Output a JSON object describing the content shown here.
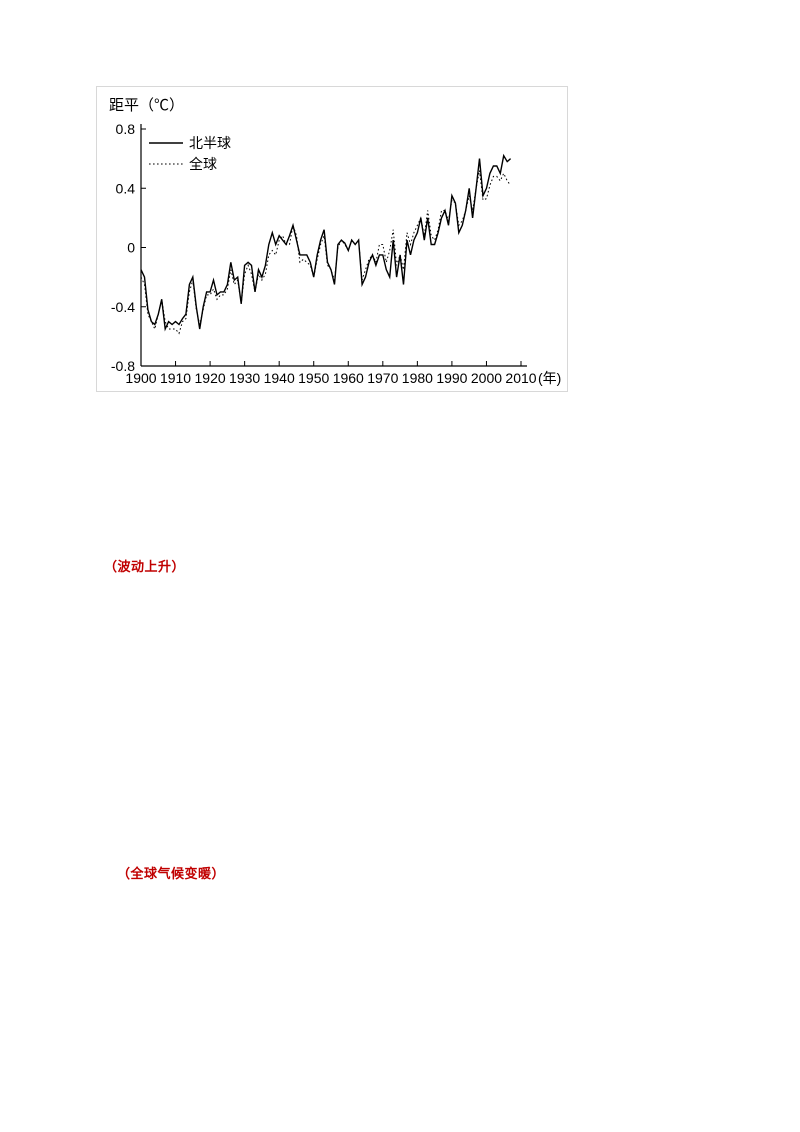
{
  "colors": {
    "line": "#000000",
    "annotation_red": "#c00000",
    "figure_border": "#d8d8d8",
    "background": "#ffffff"
  },
  "annotations": {
    "red_text_1": "（波动上升）",
    "red_text_2": "（全球气候变暖）"
  },
  "chart_data": {
    "type": "line",
    "title": "",
    "ylabel": "距平（℃）",
    "xlabel_suffix": "(年)",
    "ylim": [
      -0.8,
      0.8
    ],
    "xlim": [
      1900,
      2010
    ],
    "grid": false,
    "legend_position": "top-left-inside",
    "y_ticks": [
      0.8,
      0.4,
      0,
      -0.4,
      -0.8
    ],
    "y_tick_labels": [
      "0.8",
      "0.4",
      "0",
      "-0.4",
      "-0.8"
    ],
    "x_ticks": [
      1900,
      1910,
      1920,
      1930,
      1940,
      1950,
      1960,
      1970,
      1980,
      1990,
      2000,
      2010
    ],
    "legend": [
      {
        "name": "北半球",
        "style": "solid"
      },
      {
        "name": "全球",
        "style": "dotted"
      }
    ],
    "years": [
      1900,
      1901,
      1902,
      1903,
      1904,
      1905,
      1906,
      1907,
      1908,
      1909,
      1910,
      1911,
      1912,
      1913,
      1914,
      1915,
      1916,
      1917,
      1918,
      1919,
      1920,
      1921,
      1922,
      1923,
      1924,
      1925,
      1926,
      1927,
      1928,
      1929,
      1930,
      1931,
      1932,
      1933,
      1934,
      1935,
      1936,
      1937,
      1938,
      1939,
      1940,
      1941,
      1942,
      1943,
      1944,
      1945,
      1946,
      1947,
      1948,
      1949,
      1950,
      1951,
      1952,
      1953,
      1954,
      1955,
      1956,
      1957,
      1958,
      1959,
      1960,
      1961,
      1962,
      1963,
      1964,
      1965,
      1966,
      1967,
      1968,
      1969,
      1970,
      1971,
      1972,
      1973,
      1974,
      1975,
      1976,
      1977,
      1978,
      1979,
      1980,
      1981,
      1982,
      1983,
      1984,
      1985,
      1986,
      1987,
      1988,
      1989,
      1990,
      1991,
      1992,
      1993,
      1994,
      1995,
      1996,
      1997,
      1998,
      1999,
      2000,
      2001,
      2002,
      2003,
      2004,
      2005,
      2006,
      2007
    ],
    "series": [
      {
        "name": "北半球",
        "style": "solid",
        "values": [
          -0.15,
          -0.2,
          -0.42,
          -0.5,
          -0.52,
          -0.45,
          -0.35,
          -0.55,
          -0.5,
          -0.52,
          -0.5,
          -0.52,
          -0.48,
          -0.45,
          -0.25,
          -0.2,
          -0.4,
          -0.55,
          -0.4,
          -0.3,
          -0.3,
          -0.22,
          -0.32,
          -0.3,
          -0.3,
          -0.25,
          -0.1,
          -0.22,
          -0.2,
          -0.38,
          -0.12,
          -0.1,
          -0.12,
          -0.3,
          -0.15,
          -0.2,
          -0.12,
          0.02,
          0.1,
          0.02,
          0.08,
          0.05,
          0.02,
          0.08,
          0.15,
          0.05,
          -0.05,
          -0.05,
          -0.05,
          -0.1,
          -0.2,
          -0.05,
          0.05,
          0.12,
          -0.1,
          -0.15,
          -0.25,
          0.02,
          0.05,
          0.03,
          -0.02,
          0.05,
          0.02,
          0.05,
          -0.25,
          -0.2,
          -0.1,
          -0.05,
          -0.12,
          -0.05,
          -0.05,
          -0.15,
          -0.2,
          0.05,
          -0.2,
          -0.05,
          -0.25,
          0.05,
          -0.05,
          0.05,
          0.1,
          0.2,
          0.05,
          0.2,
          0.02,
          0.02,
          0.1,
          0.2,
          0.25,
          0.15,
          0.35,
          0.3,
          0.1,
          0.15,
          0.25,
          0.4,
          0.2,
          0.4,
          0.6,
          0.35,
          0.4,
          0.5,
          0.55,
          0.55,
          0.5,
          0.62,
          0.58,
          0.6
        ]
      },
      {
        "name": "全球",
        "style": "dotted",
        "values": [
          -0.2,
          -0.25,
          -0.45,
          -0.5,
          -0.55,
          -0.45,
          -0.35,
          -0.5,
          -0.55,
          -0.55,
          -0.55,
          -0.58,
          -0.5,
          -0.48,
          -0.3,
          -0.22,
          -0.42,
          -0.52,
          -0.42,
          -0.32,
          -0.32,
          -0.28,
          -0.35,
          -0.32,
          -0.32,
          -0.28,
          -0.15,
          -0.25,
          -0.22,
          -0.38,
          -0.18,
          -0.12,
          -0.18,
          -0.3,
          -0.18,
          -0.22,
          -0.18,
          -0.05,
          -0.02,
          -0.05,
          0.05,
          0.08,
          0.02,
          0.02,
          0.15,
          0.08,
          -0.1,
          -0.08,
          -0.1,
          -0.12,
          -0.2,
          -0.08,
          0.02,
          0.08,
          -0.12,
          -0.15,
          -0.22,
          0.0,
          0.05,
          0.02,
          -0.02,
          0.05,
          0.02,
          0.05,
          -0.22,
          -0.15,
          -0.08,
          -0.05,
          -0.1,
          0.02,
          0.02,
          -0.1,
          -0.02,
          0.12,
          -0.12,
          -0.05,
          -0.15,
          0.1,
          0.02,
          0.1,
          0.15,
          0.2,
          0.08,
          0.25,
          0.08,
          0.05,
          0.12,
          0.25,
          0.25,
          0.18,
          0.32,
          0.3,
          0.15,
          0.18,
          0.25,
          0.35,
          0.25,
          0.4,
          0.52,
          0.32,
          0.33,
          0.42,
          0.48,
          0.48,
          0.45,
          0.5,
          0.45,
          0.42
        ]
      }
    ]
  }
}
